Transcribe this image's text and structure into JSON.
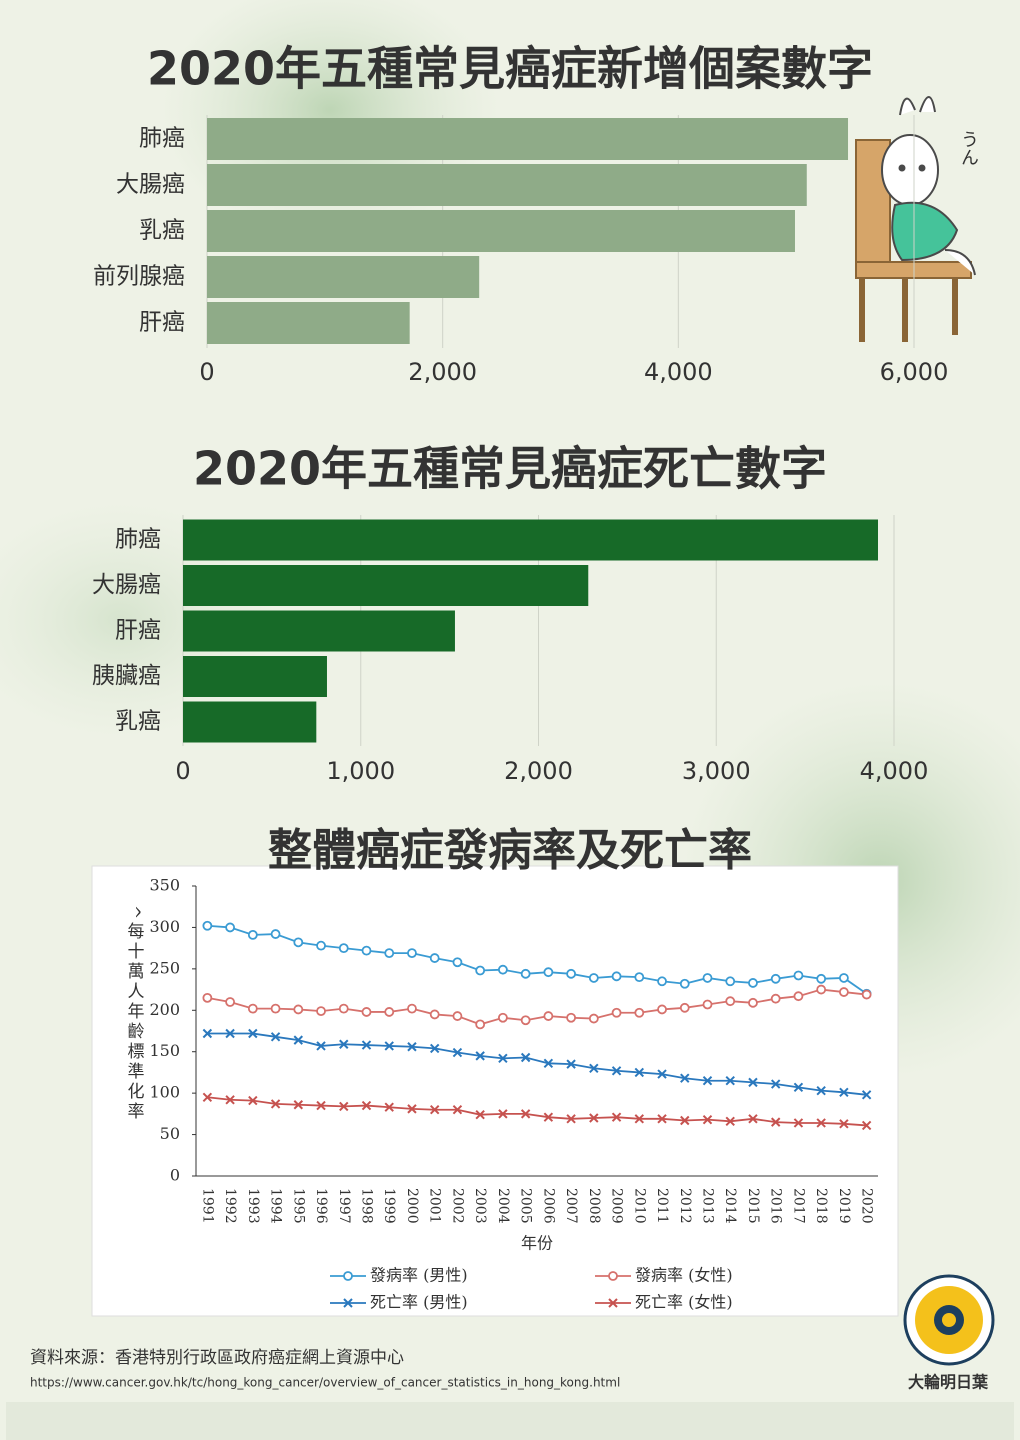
{
  "chart_data": [
    {
      "type": "bar",
      "orientation": "horizontal",
      "title": "2020年五種常見癌症新增個案數字",
      "categories": [
        "肺癌",
        "大腸癌",
        "乳癌",
        "前列腺癌",
        "肝癌"
      ],
      "values": [
        5440,
        5090,
        4990,
        2310,
        1720
      ],
      "color": "#8fab88",
      "xlim": [
        0,
        6000
      ],
      "xticks": [
        0,
        {
          "value": 2000,
          "label": "2,000"
        },
        {
          "value": 4000,
          "label": "4,000"
        },
        {
          "value": 6000,
          "label": "6,000"
        }
      ],
      "grid": true
    },
    {
      "type": "bar",
      "orientation": "horizontal",
      "title": "2020年五種常見癌症死亡數字",
      "categories": [
        "肺癌",
        "大腸癌",
        "肝癌",
        "胰臟癌",
        "乳癌"
      ],
      "values": [
        3910,
        2280,
        1530,
        810,
        750
      ],
      "color": "#176a28",
      "xlim": [
        0,
        4000
      ],
      "xticks": [
        0,
        {
          "value": 1000,
          "label": "1,000"
        },
        {
          "value": 2000,
          "label": "2,000"
        },
        {
          "value": 3000,
          "label": "3,000"
        },
        {
          "value": 4000,
          "label": "4,000"
        }
      ],
      "grid": true
    },
    {
      "type": "line",
      "title": "整體癌症發病率及死亡率",
      "x_label": "年份",
      "y_label": "^每十萬人年齡標準化率",
      "categories": [
        "1991",
        "1992",
        "1993",
        "1994",
        "1995",
        "1996",
        "1997",
        "1998",
        "1999",
        "2000",
        "2001",
        "2002",
        "2003",
        "2004",
        "2005",
        "2006",
        "2007",
        "2008",
        "2009",
        "2010",
        "2011",
        "2012",
        "2013",
        "2014",
        "2015",
        "2016",
        "2017",
        "2018",
        "2019",
        "2020"
      ],
      "ylim": [
        0,
        350
      ],
      "yticks": [
        0,
        50,
        100,
        150,
        200,
        250,
        300,
        350
      ],
      "grid": true,
      "series": [
        {
          "name": "發病率 (男性)",
          "color": "#3a9bd3",
          "marker": "circle",
          "values": [
            302,
            300,
            291,
            292,
            282,
            278,
            275,
            272,
            269,
            269,
            263,
            258,
            248,
            249,
            244,
            246,
            244,
            239,
            241,
            240,
            235,
            232,
            239,
            235,
            233,
            238,
            242,
            238,
            239,
            220
          ]
        },
        {
          "name": "發病率 (女性)",
          "color": "#d6716c",
          "marker": "circle",
          "values": [
            215,
            210,
            202,
            202,
            201,
            199,
            202,
            198,
            198,
            202,
            195,
            193,
            183,
            191,
            188,
            193,
            191,
            190,
            197,
            197,
            201,
            203,
            207,
            211,
            209,
            214,
            217,
            225,
            222,
            219
          ]
        },
        {
          "name": "死亡率 (男性)",
          "color": "#2a78bd",
          "marker": "x",
          "values": [
            172,
            172,
            172,
            168,
            164,
            157,
            159,
            158,
            157,
            156,
            154,
            149,
            145,
            142,
            143,
            136,
            135,
            130,
            127,
            125,
            123,
            118,
            115,
            115,
            113,
            111,
            107,
            103,
            101,
            98
          ]
        },
        {
          "name": "死亡率 (女性)",
          "color": "#c6524f",
          "marker": "x",
          "values": [
            95,
            92,
            91,
            87,
            86,
            85,
            84,
            85,
            83,
            81,
            80,
            80,
            74,
            75,
            75,
            71,
            69,
            70,
            71,
            69,
            69,
            67,
            68,
            66,
            69,
            65,
            64,
            64,
            63,
            61
          ]
        }
      ]
    }
  ],
  "source": {
    "label": "資料來源：香港特別行政區政府癌症網上資源中心",
    "url": "https://www.cancer.gov.hk/tc/hong_kong_cancer/overview_of_cancer_statistics_in_hong_kong.html"
  },
  "logo_text": "大輪明日葉",
  "illustration_text": "うん"
}
